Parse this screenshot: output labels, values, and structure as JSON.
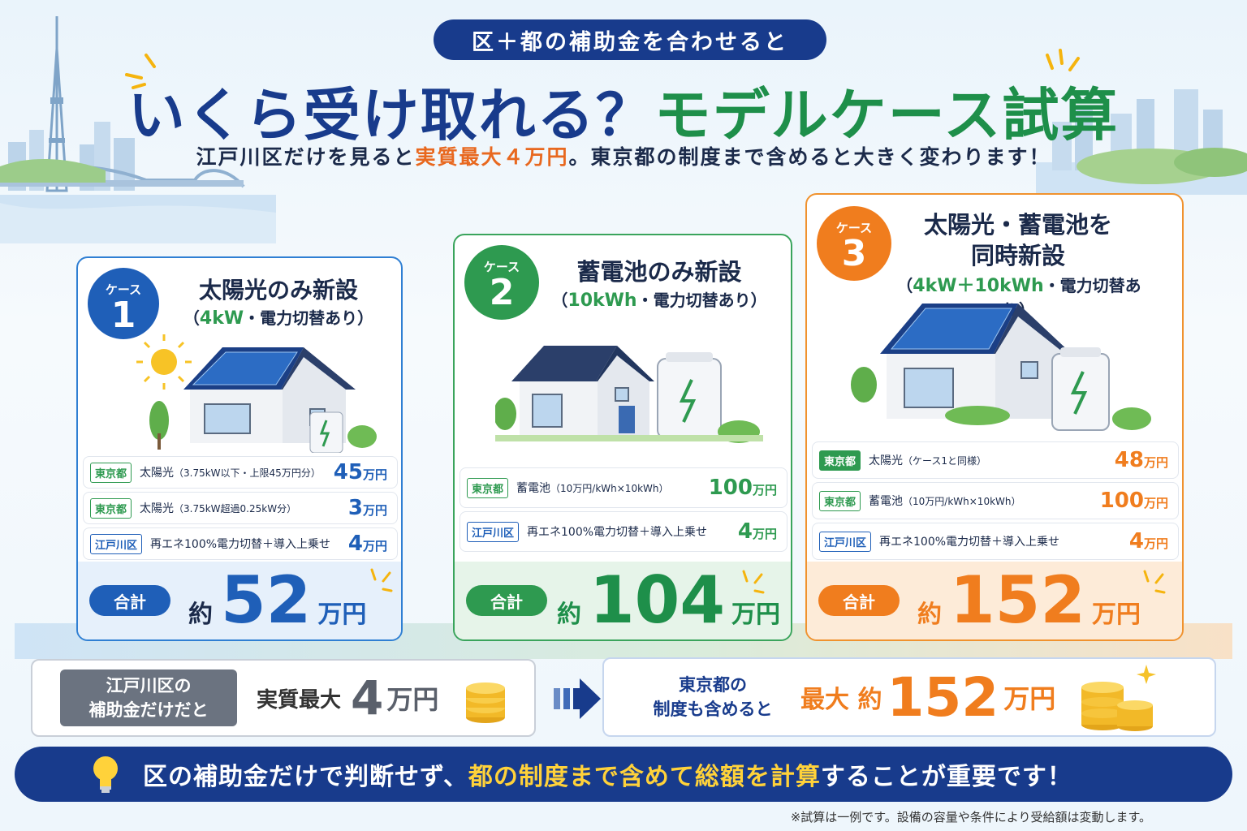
{
  "header": {
    "pill": "区＋都の補助金を合わせると",
    "headline_a": "いくら受け取れる？",
    "headline_b": "モデルケース試算",
    "sub_a": "江戸川区だけを見ると",
    "sub_highlight": "実質最大４万円",
    "sub_b": "。東京都の制度まで含めると大きく変わります！"
  },
  "cases": [
    {
      "badge_label": "ケース",
      "badge_num": "1",
      "title": "太陽光のみ新設",
      "sub_open": "（",
      "sub_green": "4kW",
      "sub_rest": "・電力切替あり）",
      "rows": [
        {
          "tag": "東京都",
          "desc": "太陽光",
          "desc_small": "（3.75kW以下・上限45万円分）",
          "amount": "45",
          "unit": "万円"
        },
        {
          "tag": "東京都",
          "desc": "太陽光",
          "desc_small": "（3.75kW超過0.25kW分）",
          "amount": "3",
          "unit": "万円"
        },
        {
          "tag": "江戸川区",
          "desc": "再エネ100%電力切替＋導入上乗せ",
          "desc_small": "",
          "amount": "4",
          "unit": "万円"
        }
      ],
      "total_label": "合計",
      "total_approx": "約",
      "total_value": "52",
      "total_unit": "万円"
    },
    {
      "badge_label": "ケース",
      "badge_num": "2",
      "title": "蓄電池のみ新設",
      "sub_open": "（",
      "sub_green": "10kWh",
      "sub_rest": "・電力切替あり）",
      "rows": [
        {
          "tag": "東京都",
          "desc": "蓄電池",
          "desc_small": "（10万円/kWh×10kWh）",
          "amount": "100",
          "unit": "万円"
        },
        {
          "tag": "江戸川区",
          "desc": "再エネ100%電力切替＋導入上乗せ",
          "desc_small": "",
          "amount": "4",
          "unit": "万円"
        }
      ],
      "total_label": "合計",
      "total_approx": "約",
      "total_value": "104",
      "total_unit": "万円"
    },
    {
      "badge_label": "ケース",
      "badge_num": "3",
      "title": "太陽光・蓄電池を",
      "title2": "同時新設",
      "sub_open": "（",
      "sub_green": "4kW＋10kWh",
      "sub_rest": "・電力切替あり）",
      "rows": [
        {
          "tag": "東京都",
          "desc": "太陽光",
          "desc_small": "（ケース1と同様）",
          "amount": "48",
          "unit": "万円"
        },
        {
          "tag": "東京都",
          "desc": "蓄電池",
          "desc_small": "（10万円/kWh×10kWh）",
          "amount": "100",
          "unit": "万円"
        },
        {
          "tag": "江戸川区",
          "desc": "再エネ100%電力切替＋導入上乗せ",
          "desc_small": "",
          "amount": "4",
          "unit": "万円"
        }
      ],
      "total_label": "合計",
      "total_approx": "約",
      "total_value": "152",
      "total_unit": "万円"
    }
  ],
  "summary_left": {
    "tag_line1": "江戸川区の",
    "tag_line2": "補助金だけだと",
    "label": "実質最大",
    "value": "4",
    "unit": "万円"
  },
  "summary_right": {
    "lead_line1": "東京都の",
    "lead_line2": "制度も含めると",
    "max": "最大 約",
    "value": "152",
    "unit": "万円"
  },
  "banner": {
    "msg_a": "区の補助金だけで判断せず、",
    "msg_highlight": "都の制度まで含めて総額を計算",
    "msg_b": "することが重要です！"
  },
  "footnote": "※試算は一例です。設備の容量や条件により受給額は変動します。",
  "colors": {
    "navy": "#183b8c",
    "blue": "#1f5fb8",
    "green": "#2e9a50",
    "orange": "#f07d1e"
  }
}
